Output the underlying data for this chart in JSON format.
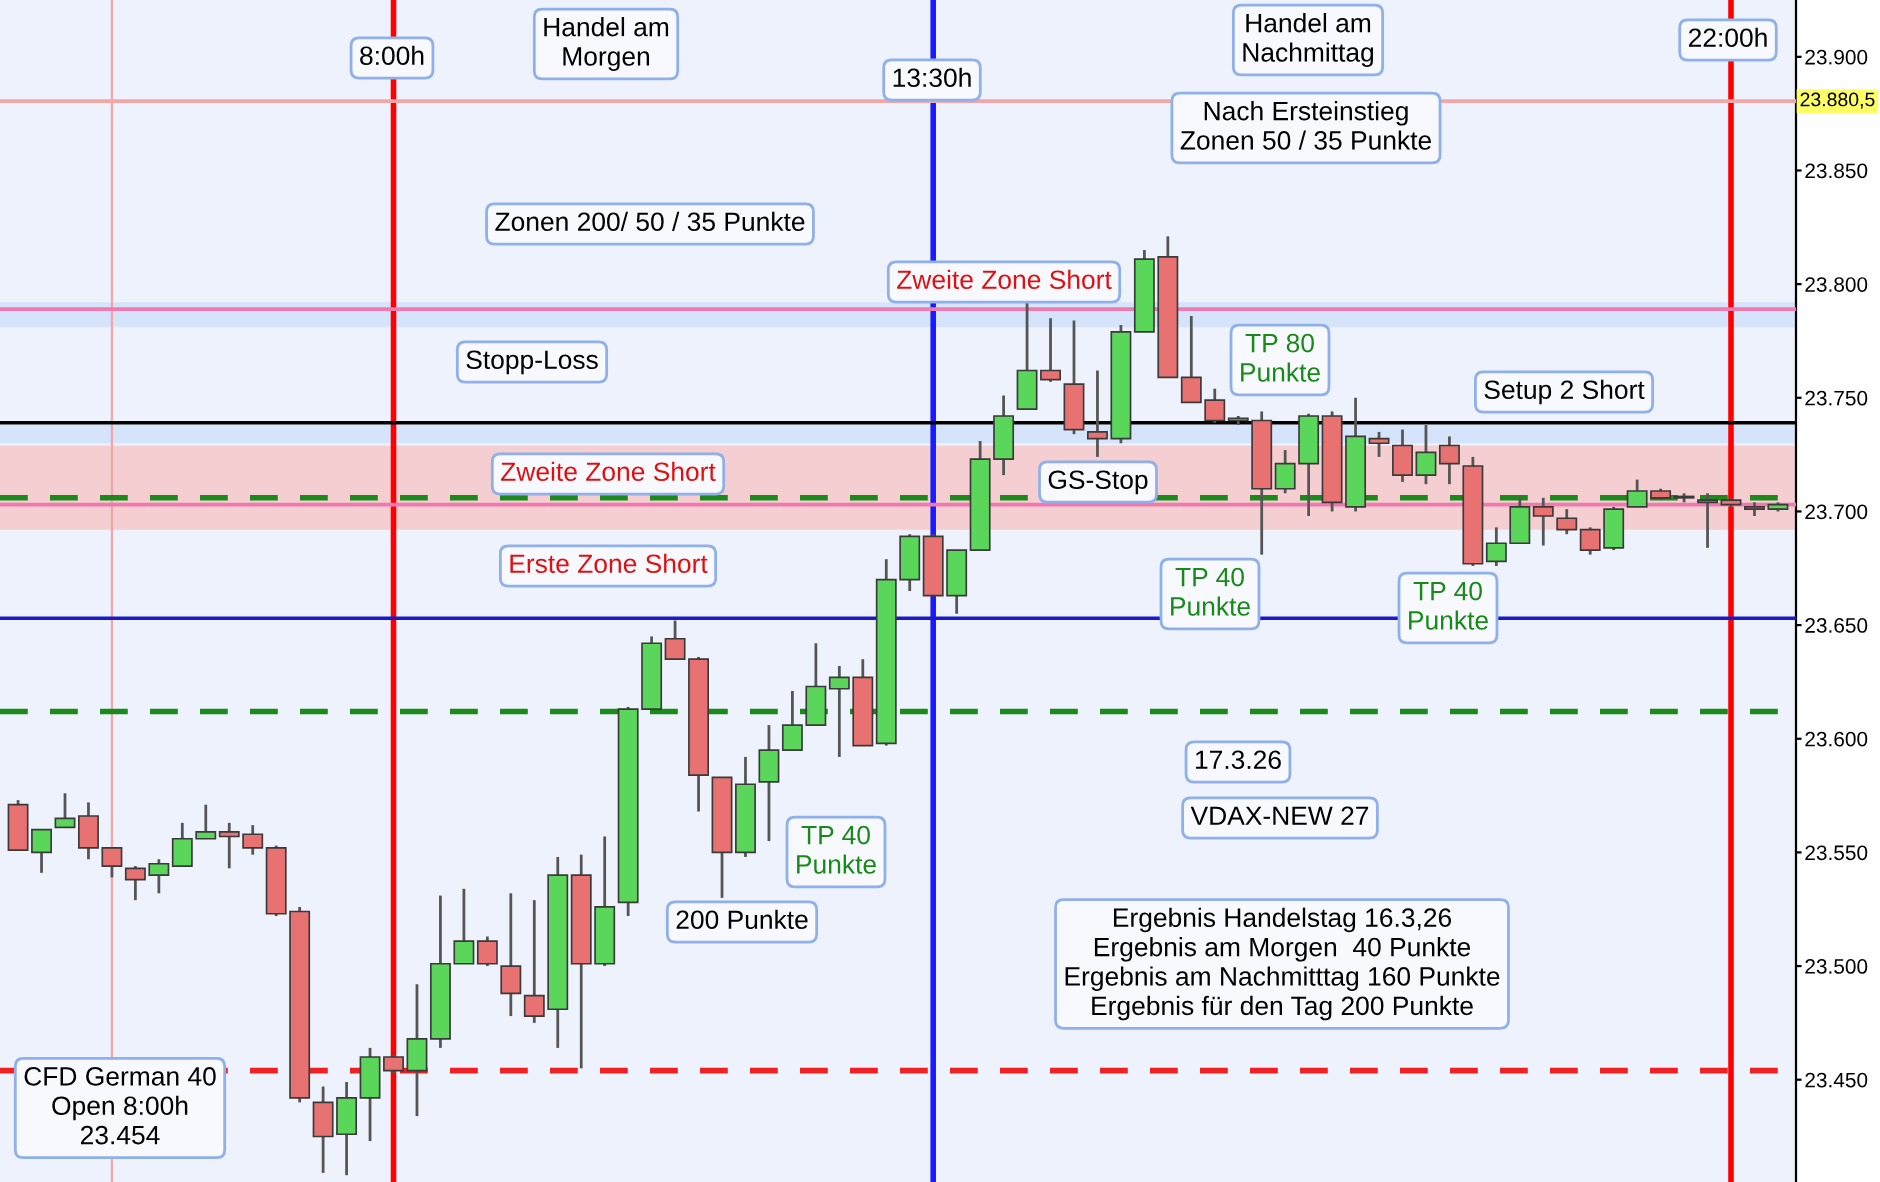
{
  "chart_data": {
    "type": "candlestick",
    "tick_labels": "y",
    "grid": false,
    "legend": false,
    "categories": [
      null,
      null,
      null,
      null,
      null,
      null,
      null,
      null,
      null,
      null,
      null,
      null,
      null,
      null,
      null,
      null,
      null,
      null,
      null,
      null,
      null,
      null,
      null,
      null,
      null,
      null,
      null,
      null,
      null,
      null,
      null,
      null,
      null,
      null,
      null,
      null,
      null,
      null,
      null,
      null,
      null,
      null,
      null,
      null,
      null,
      null,
      null,
      null,
      null,
      null,
      null,
      null,
      null,
      null,
      null,
      null,
      null,
      null,
      null,
      null,
      null,
      null,
      null,
      null,
      null,
      null,
      null,
      null,
      null,
      null,
      null,
      null,
      null,
      null,
      null,
      null
    ],
    "ohlc": [
      [
        23571,
        23573,
        23551,
        23551
      ],
      [
        23550,
        23560,
        23541,
        23560
      ],
      [
        23561,
        23576,
        23561,
        23565
      ],
      [
        23566,
        23572,
        23547,
        23552
      ],
      [
        23552,
        23552,
        23539,
        23544
      ],
      [
        23543,
        23544,
        23529,
        23538
      ],
      [
        23540,
        23547,
        23532,
        23545
      ],
      [
        23544,
        23563,
        23544,
        23556
      ],
      [
        23556,
        23571,
        23556,
        23559
      ],
      [
        23559,
        23563,
        23543,
        23557
      ],
      [
        23558,
        23562,
        23549,
        23552
      ],
      [
        23552,
        23553,
        23522,
        23523
      ],
      [
        23524,
        23526,
        23440,
        23442
      ],
      [
        23440,
        23447,
        23409,
        23425
      ],
      [
        23426,
        23449,
        23408,
        23442
      ],
      [
        23442,
        23464,
        23423,
        23460
      ],
      [
        23460,
        23461,
        23453,
        23454
      ],
      [
        23454,
        23492,
        23434,
        23468
      ],
      [
        23468,
        23531,
        23464,
        23501
      ],
      [
        23501,
        23534,
        23501,
        23511
      ],
      [
        23511,
        23513,
        23500,
        23501
      ],
      [
        23500,
        23532,
        23478,
        23488
      ],
      [
        23487,
        23529,
        23475,
        23478
      ],
      [
        23481,
        23548,
        23464,
        23540
      ],
      [
        23540,
        23549,
        23455,
        23501
      ],
      [
        23501,
        23557,
        23500,
        23526
      ],
      [
        23528,
        23614,
        23522,
        23613
      ],
      [
        23613,
        23645,
        23613,
        23642
      ],
      [
        23644,
        23652,
        23635,
        23635
      ],
      [
        23635,
        23636,
        23568,
        23584
      ],
      [
        23583,
        23583,
        23530,
        23550
      ],
      [
        23550,
        23592,
        23548,
        23580
      ],
      [
        23581,
        23606,
        23555,
        23595
      ],
      [
        23595,
        23621,
        23595,
        23606
      ],
      [
        23606,
        23642,
        23606,
        23623
      ],
      [
        23622,
        23632,
        23592,
        23627
      ],
      [
        23627,
        23635,
        23597,
        23597
      ],
      [
        23598,
        23679,
        23597,
        23670
      ],
      [
        23670,
        23690,
        23665,
        23689
      ],
      [
        23689,
        23690,
        23663,
        23663
      ],
      [
        23663,
        23683,
        23655,
        23683
      ],
      [
        23683,
        23731,
        23683,
        23723
      ],
      [
        23723,
        23751,
        23716,
        23742
      ],
      [
        23745,
        23792,
        23745,
        23762
      ],
      [
        23762,
        23785,
        23757,
        23758
      ],
      [
        23756,
        23784,
        23734,
        23736
      ],
      [
        23735,
        23762,
        23724,
        23732
      ],
      [
        23732,
        23782,
        23730,
        23779
      ],
      [
        23779,
        23815,
        23779,
        23811
      ],
      [
        23812,
        23821,
        23759,
        23759
      ],
      [
        23759,
        23786,
        23748,
        23748
      ],
      [
        23749,
        23754,
        23739,
        23740
      ],
      [
        23741,
        23742,
        23738,
        23740
      ],
      [
        23740,
        23744,
        23681,
        23710
      ],
      [
        23710,
        23727,
        23708,
        23721
      ],
      [
        23721,
        23743,
        23698,
        23742
      ],
      [
        23742,
        23744,
        23700,
        23704
      ],
      [
        23702,
        23750,
        23700,
        23733
      ],
      [
        23732,
        23735,
        23724,
        23730
      ],
      [
        23729,
        23736,
        23713,
        23716
      ],
      [
        23716,
        23738,
        23712,
        23726
      ],
      [
        23729,
        23733,
        23712,
        23721
      ],
      [
        23720,
        23724,
        23676,
        23677
      ],
      [
        23678,
        23693,
        23676,
        23686
      ],
      [
        23686,
        23706,
        23686,
        23702
      ],
      [
        23702,
        23706,
        23685,
        23698
      ],
      [
        23697,
        23701,
        23690,
        23692
      ],
      [
        23692,
        23693,
        23681,
        23683
      ],
      [
        23684,
        23702,
        23683,
        23701
      ],
      [
        23702,
        23714,
        23702,
        23709
      ],
      [
        23709,
        23710,
        23705,
        23706
      ],
      [
        23706,
        23708,
        23704,
        23706
      ],
      [
        23705,
        23708,
        23684,
        23704
      ],
      [
        23705,
        23706,
        23702,
        23703
      ],
      [
        23702,
        23704,
        23698,
        23701
      ],
      [
        23701,
        23704,
        23700,
        23703
      ]
    ],
    "colors": [
      "#e87272",
      "#5ad65a",
      "#5ad65a",
      "#e87272",
      "#e87272",
      "#e87272",
      "#5ad65a",
      "#5ad65a",
      "#5ad65a",
      "#e87272",
      "#e87272",
      "#e87272",
      "#e87272",
      "#e87272",
      "#5ad65a",
      "#5ad65a",
      "#e87272",
      "#5ad65a",
      "#5ad65a",
      "#5ad65a",
      "#e87272",
      "#e87272",
      "#e87272",
      "#5ad65a",
      "#e87272",
      "#5ad65a",
      "#5ad65a",
      "#5ad65a",
      "#e87272",
      "#e87272",
      "#e87272",
      "#5ad65a",
      "#5ad65a",
      "#5ad65a",
      "#5ad65a",
      "#5ad65a",
      "#e87272",
      "#5ad65a",
      "#5ad65a",
      "#e87272",
      "#5ad65a",
      "#5ad65a",
      "#5ad65a",
      "#5ad65a",
      "#e87272",
      "#e87272",
      "#e87272",
      "#5ad65a",
      "#5ad65a",
      "#e87272",
      "#e87272",
      "#e87272",
      "#e87272",
      "#e87272",
      "#5ad65a",
      "#5ad65a",
      "#e87272",
      "#5ad65a",
      "#e87272",
      "#e87272",
      "#5ad65a",
      "#e87272",
      "#e87272",
      "#5ad65a",
      "#5ad65a",
      "#e87272",
      "#e87272",
      "#e87272",
      "#5ad65a",
      "#5ad65a",
      "#e87272",
      "#e87272",
      "#e87272",
      "#e87272",
      "#e87272",
      "#5ad65a"
    ],
    "ylim": [
      23405,
      23925
    ],
    "yticks": [
      {
        "value": 23450,
        "label": "23.450"
      },
      {
        "value": 23500,
        "label": "23.500"
      },
      {
        "value": 23550,
        "label": "23.550"
      },
      {
        "value": 23600,
        "label": "23.600"
      },
      {
        "value": 23650,
        "label": "23.650"
      },
      {
        "value": 23700,
        "label": "23.700"
      },
      {
        "value": 23750,
        "label": "23.750"
      },
      {
        "value": 23800,
        "label": "23.800"
      },
      {
        "value": 23850,
        "label": "23.850"
      },
      {
        "value": 23900,
        "label": "23.900"
      }
    ],
    "ref_lines": [
      {
        "axis": "y",
        "value": 23880.5,
        "label": "23.880,5",
        "color": "#f4a6a6",
        "line_style": "solid"
      },
      {
        "axis": "y",
        "value": 23612,
        "label": null,
        "color": "#1a8a1a",
        "line_style": "dashed"
      },
      {
        "axis": "y",
        "value": 23706,
        "label": null,
        "color": "#1a8a1a",
        "line_style": "dashed"
      },
      {
        "axis": "y",
        "value": 23454,
        "label": null,
        "color": "#ee2222",
        "line_style": "dashed"
      },
      {
        "axis": "y",
        "value": 23739,
        "label": null,
        "color": "#000000",
        "line_style": "solid"
      },
      {
        "axis": "y",
        "value": 23703,
        "label": null,
        "color": "#f07ab0",
        "line_style": "solid"
      },
      {
        "axis": "y",
        "value": 23653,
        "label": null,
        "color": "#1a1acc",
        "line_style": "solid"
      },
      {
        "axis": "y",
        "value": 23789,
        "label": null,
        "color": "#f07ab0",
        "line_style": "solid"
      }
    ],
    "bands": [
      {
        "axis": "y",
        "from": 23781,
        "to": 23792,
        "label": null,
        "color": "#cfe0fa"
      },
      {
        "axis": "y",
        "from": 23730,
        "to": 23738,
        "label": null,
        "color": "#cfe0fa"
      },
      {
        "axis": "y",
        "from": 23692,
        "to": 23729,
        "label": null,
        "color": "#f6c4c6"
      }
    ],
    "annotations": [
      "8:00h",
      "13:30h",
      "22:00h",
      "Handel am\nMorgen",
      "Handel am\nNachmittag",
      "Nach Ersteinstieg\nZonen 50 / 35 Punkte",
      "Zonen 200/ 50 / 35 Punkte",
      "Stopp-Loss",
      "Zweite Zone Short",
      "Erste Zone Short",
      "Zweite Zone Short",
      "GS-Stop",
      "TP 80\nPunkte",
      "Setup 2 Short",
      "TP 40\nPunkte",
      "TP 40\nPunkte",
      "TP 40\nPunkte",
      "200 Punkte",
      "17.3.26",
      "VDAX-NEW 27",
      "Ergebnis Handelstag 16.3,26\nErgebnis am Morgen  40 Punkte\nErgebnis am Nachmitttag 160 Punkte\nErgebnis für den Tag 200 Punkte",
      "CFD German 40\nOpen 8:00h\n23.454"
    ]
  }
}
